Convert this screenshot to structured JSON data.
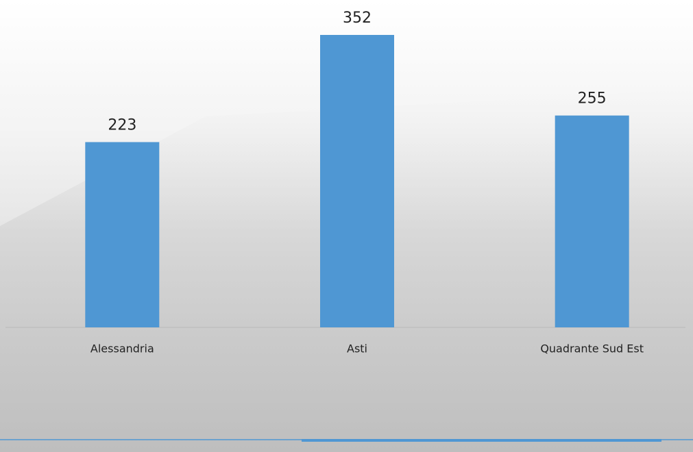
{
  "chart_data": {
    "type": "bar",
    "categories": [
      "Alessandria",
      "Asti",
      "Quadrante Sud Est"
    ],
    "values": [
      223,
      352,
      255
    ],
    "color": "#4f97d3"
  }
}
